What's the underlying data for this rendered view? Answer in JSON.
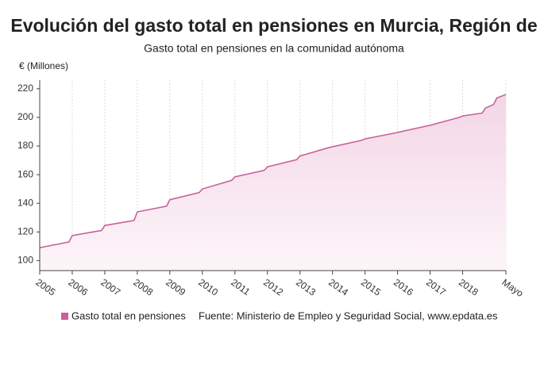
{
  "chart_data": {
    "type": "line",
    "title": "Evolución del gasto total en pensiones en Murcia, Región de",
    "subtitle": "Gasto total en pensiones en la comunidad autónoma",
    "y_label": "€ (Millones)",
    "source": "Fuente: Ministerio de Empleo y Seguridad Social, www.epdata.es",
    "x": [
      2005.0,
      2005.9,
      2006.0,
      2006.9,
      2007.0,
      2007.9,
      2008.0,
      2008.9,
      2009.0,
      2009.9,
      2010.0,
      2010.9,
      2011.0,
      2011.9,
      2012.0,
      2012.9,
      2013.0,
      2013.9,
      2014.0,
      2014.9,
      2015.0,
      2015.9,
      2016.0,
      2016.9,
      2017.0,
      2017.9,
      2018.0,
      2018.6,
      2018.7,
      2018.95,
      2019.05,
      2019.33
    ],
    "series": [
      {
        "name": "Gasto total en pensiones",
        "color": "#c8619b",
        "values": [
          109,
          113,
          117.5,
          121,
          124.5,
          128,
          134,
          138,
          142.5,
          147.5,
          150,
          156,
          158.5,
          163,
          165.5,
          170.5,
          173,
          179,
          179.5,
          184,
          185,
          189,
          189.5,
          194,
          194.5,
          200,
          201,
          203,
          206.5,
          209,
          213.5,
          216
        ]
      }
    ],
    "xlim": [
      2005,
      2019.33
    ],
    "xticks": [
      2005,
      2006,
      2007,
      2008,
      2009,
      2010,
      2011,
      2012,
      2013,
      2014,
      2015,
      2016,
      2017,
      2018,
      {
        "value": 2019.33,
        "label": "Mayo"
      }
    ],
    "ylim": [
      93,
      226
    ],
    "yticks": [
      100,
      120,
      140,
      160,
      180,
      200,
      220
    ],
    "grid": true
  }
}
